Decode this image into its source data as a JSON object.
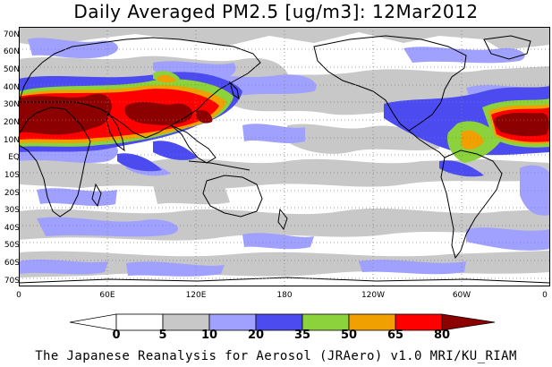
{
  "title": "Daily Averaged PM2.5 [ug/m3]: 12Mar2012",
  "credit": "The Japanese Reanalysis for Aerosol (JRAero) v1.0 MRI/KU_RIAM",
  "lat_labels": [
    "70N",
    "60N",
    "50N",
    "40N",
    "30N",
    "20N",
    "10N",
    "EQ",
    "10S",
    "20S",
    "30S",
    "40S",
    "50S",
    "60S",
    "70S"
  ],
  "lon_labels": [
    "0",
    "60E",
    "120E",
    "180",
    "120W",
    "60W",
    "0"
  ],
  "colorbar": {
    "levels": [
      "0",
      "5",
      "10",
      "20",
      "35",
      "50",
      "65",
      "80"
    ],
    "colors": [
      "#ffffff",
      "#c8c8c8",
      "#a0a0ff",
      "#4b4bf0",
      "#8cd23c",
      "#f0a000",
      "#ff0000",
      "#8c0000"
    ]
  }
}
